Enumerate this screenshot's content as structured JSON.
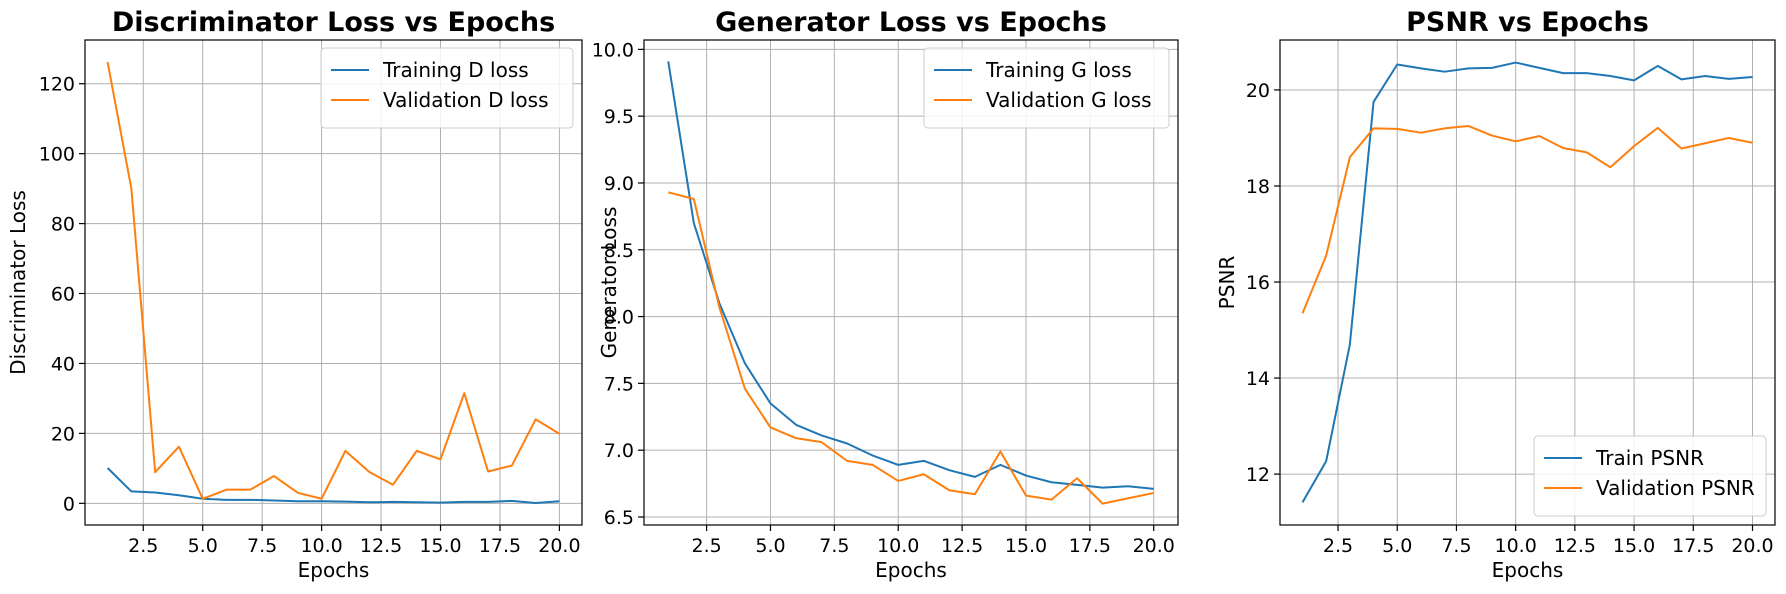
{
  "chart_data": [
    {
      "type": "line",
      "title": "Discriminator Loss vs Epochs",
      "xlabel": "Epochs",
      "ylabel": "Discriminator Loss",
      "xlim": [
        0.05,
        20.95
      ],
      "ylim": [
        -6.2,
        132.5
      ],
      "xticks": [
        2.5,
        5.0,
        7.5,
        10.0,
        12.5,
        15.0,
        17.5,
        20.0
      ],
      "xtick_labels": [
        "2.5",
        "5.0",
        "7.5",
        "10.0",
        "12.5",
        "15.0",
        "17.5",
        "20.0"
      ],
      "yticks": [
        0,
        20,
        40,
        60,
        80,
        100,
        120
      ],
      "ytick_labels": [
        "0",
        "20",
        "40",
        "60",
        "80",
        "100",
        "120"
      ],
      "grid": true,
      "legend_position": "top-right",
      "x": [
        1,
        2,
        3,
        4,
        5,
        6,
        7,
        8,
        9,
        10,
        11,
        12,
        13,
        14,
        15,
        16,
        17,
        18,
        19,
        20
      ],
      "series": [
        {
          "name": "Training D loss",
          "color": "#1f77b4",
          "values": [
            10.1,
            3.4,
            3.1,
            2.3,
            1.3,
            1.0,
            1.0,
            0.8,
            0.6,
            0.6,
            0.5,
            0.3,
            0.4,
            0.3,
            0.2,
            0.4,
            0.4,
            0.7,
            0.1,
            0.6
          ]
        },
        {
          "name": "Validation D loss",
          "color": "#ff7f0e",
          "values": [
            126.2,
            90.0,
            8.9,
            16.2,
            1.3,
            3.9,
            3.9,
            7.8,
            3.0,
            1.3,
            15.0,
            9.0,
            5.3,
            15.0,
            12.6,
            31.5,
            9.1,
            10.8,
            24.0,
            19.9
          ]
        }
      ]
    },
    {
      "type": "line",
      "title": "Generator Loss vs Epochs",
      "xlabel": "Epochs",
      "ylabel": "Generator Loss",
      "xlim": [
        0.05,
        20.95
      ],
      "ylim": [
        6.44,
        10.07
      ],
      "xticks": [
        2.5,
        5.0,
        7.5,
        10.0,
        12.5,
        15.0,
        17.5,
        20.0
      ],
      "xtick_labels": [
        "2.5",
        "5.0",
        "7.5",
        "10.0",
        "12.5",
        "15.0",
        "17.5",
        "20.0"
      ],
      "yticks": [
        6.5,
        7.0,
        7.5,
        8.0,
        8.5,
        9.0,
        9.5,
        10.0
      ],
      "ytick_labels": [
        "6.5",
        "7.0",
        "7.5",
        "8.0",
        "8.5",
        "9.0",
        "9.5",
        "10.0"
      ],
      "grid": true,
      "legend_position": "top-right",
      "x": [
        1,
        2,
        3,
        4,
        5,
        6,
        7,
        8,
        9,
        10,
        11,
        12,
        13,
        14,
        15,
        16,
        17,
        18,
        19,
        20
      ],
      "series": [
        {
          "name": "Training G loss",
          "color": "#1f77b4",
          "values": [
            9.91,
            8.7,
            8.1,
            7.65,
            7.35,
            7.19,
            7.11,
            7.05,
            6.96,
            6.89,
            6.92,
            6.85,
            6.8,
            6.89,
            6.81,
            6.76,
            6.74,
            6.72,
            6.73,
            6.71
          ]
        },
        {
          "name": "Validation G loss",
          "color": "#ff7f0e",
          "values": [
            8.93,
            8.88,
            8.07,
            7.46,
            7.17,
            7.09,
            7.06,
            6.92,
            6.89,
            6.77,
            6.82,
            6.7,
            6.67,
            6.99,
            6.66,
            6.63,
            6.79,
            6.6,
            6.64,
            6.68
          ]
        }
      ]
    },
    {
      "type": "line",
      "title": "PSNR vs Epochs",
      "xlabel": "Epochs",
      "ylabel": "PSNR",
      "xlim": [
        0.05,
        20.95
      ],
      "ylim": [
        10.94,
        21.04
      ],
      "xticks": [
        2.5,
        5.0,
        7.5,
        10.0,
        12.5,
        15.0,
        17.5,
        20.0
      ],
      "xtick_labels": [
        "2.5",
        "5.0",
        "7.5",
        "10.0",
        "12.5",
        "15.0",
        "17.5",
        "20.0"
      ],
      "yticks": [
        12,
        14,
        16,
        18,
        20
      ],
      "ytick_labels": [
        "12",
        "14",
        "16",
        "18",
        "20"
      ],
      "grid": true,
      "legend_position": "bottom-right",
      "x": [
        1,
        2,
        3,
        4,
        5,
        6,
        7,
        8,
        9,
        10,
        11,
        12,
        13,
        14,
        15,
        16,
        17,
        18,
        19,
        20
      ],
      "series": [
        {
          "name": "Train PSNR",
          "color": "#1f77b4",
          "values": [
            11.41,
            12.27,
            14.7,
            19.75,
            20.53,
            20.45,
            20.38,
            20.45,
            20.46,
            20.57,
            20.46,
            20.35,
            20.35,
            20.29,
            20.2,
            20.5,
            20.22,
            20.29,
            20.23,
            20.27
          ]
        },
        {
          "name": "Validation PSNR",
          "color": "#ff7f0e",
          "values": [
            15.35,
            16.55,
            18.6,
            19.2,
            19.19,
            19.11,
            19.2,
            19.25,
            19.05,
            18.93,
            19.04,
            18.79,
            18.7,
            18.39,
            18.83,
            19.21,
            18.78,
            18.89,
            19.0,
            18.9
          ]
        }
      ]
    }
  ]
}
